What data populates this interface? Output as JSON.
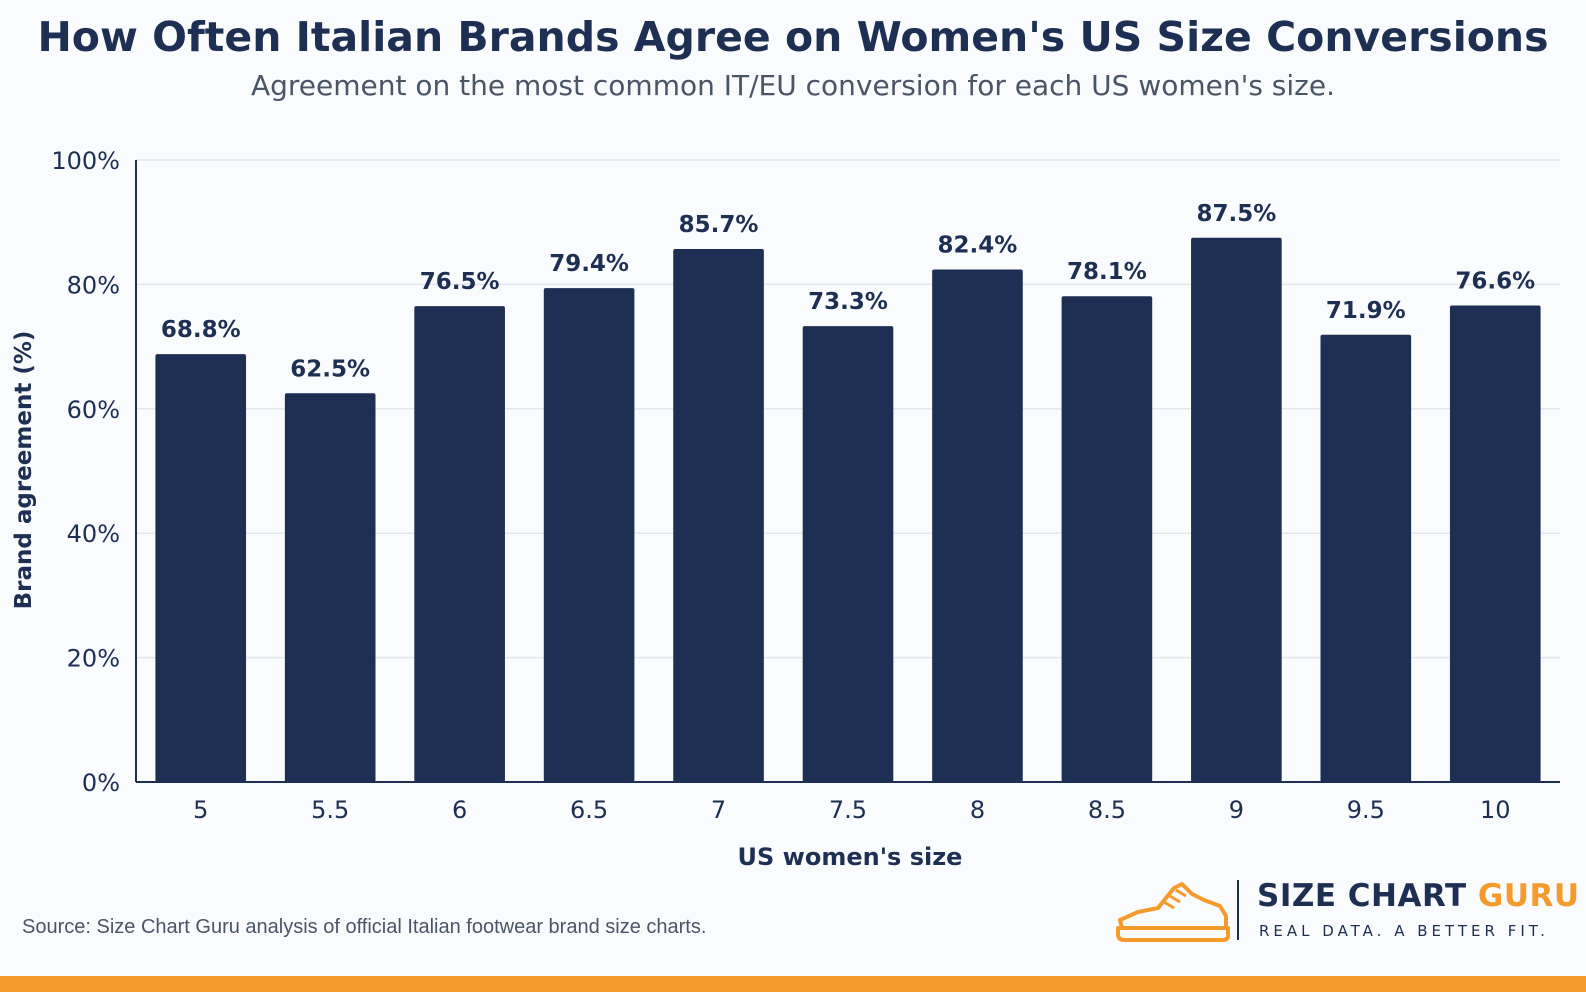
{
  "chart_data": {
    "type": "bar",
    "title": "How Often Italian Brands Agree on Women's US Size Conversions",
    "subtitle": "Agreement on the most common IT/EU conversion for each US women's size.",
    "xlabel": "US women's size",
    "ylabel": "Brand agreement (%)",
    "categories": [
      "5",
      "5.5",
      "6",
      "6.5",
      "7",
      "7.5",
      "8",
      "8.5",
      "9",
      "9.5",
      "10"
    ],
    "values": [
      68.8,
      62.5,
      76.5,
      79.4,
      85.7,
      73.3,
      82.4,
      78.1,
      87.5,
      71.9,
      76.6
    ],
    "data_labels": [
      "68.8%",
      "62.5%",
      "76.5%",
      "79.4%",
      "85.7%",
      "73.3%",
      "82.4%",
      "78.1%",
      "87.5%",
      "71.9%",
      "76.6%"
    ],
    "ylim": [
      0,
      100
    ],
    "y_ticks": [
      0,
      20,
      40,
      60,
      80,
      100
    ],
    "y_tick_labels": [
      "0%",
      "20%",
      "40%",
      "60%",
      "80%",
      "100%"
    ],
    "grid": true,
    "bar_color": "#1d2f52"
  },
  "source_text": "Source: Size Chart Guru analysis of official Italian footwear brand size charts.",
  "brand": {
    "name_part1": "SIZE CHART ",
    "name_part2": "GURU",
    "tagline": "REAL DATA. A BETTER FIT.",
    "logo_icon": "sneaker-icon",
    "accent_color": "#f59b2e"
  }
}
